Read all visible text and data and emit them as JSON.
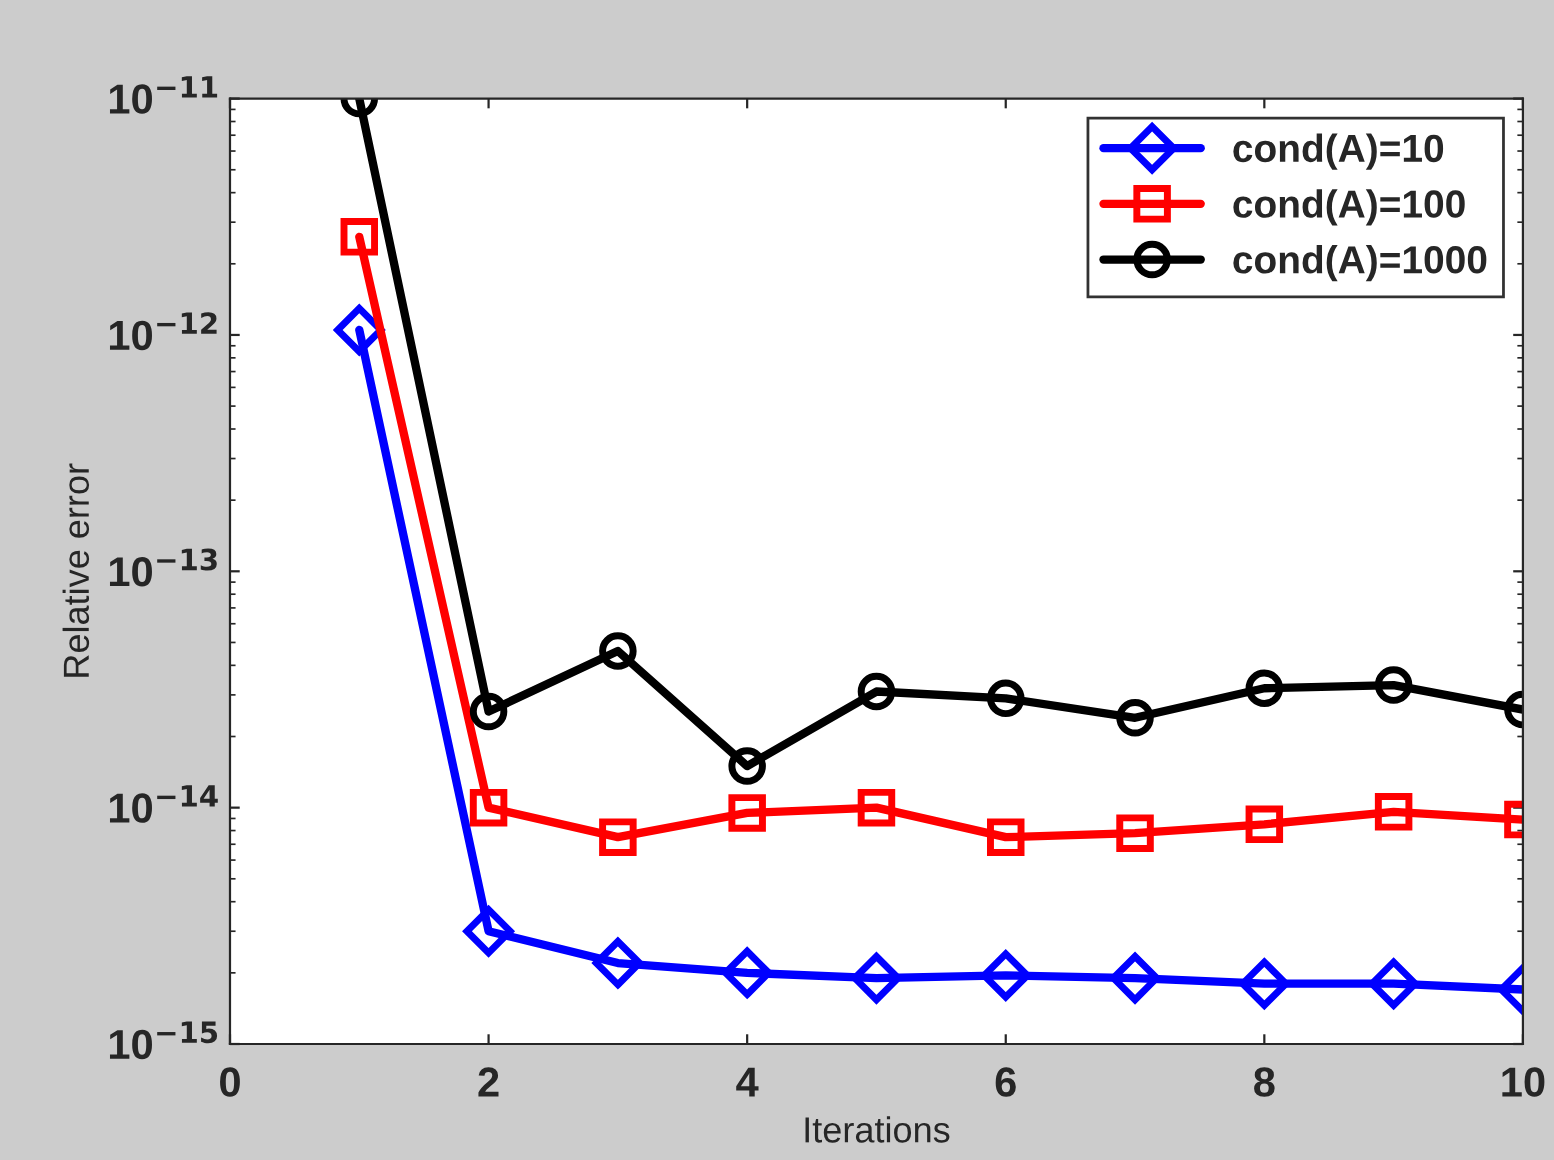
{
  "chart_data": {
    "type": "line",
    "xlabel": "Iterations",
    "ylabel": "Relative error",
    "log": "y",
    "x": [
      1,
      2,
      3,
      4,
      5,
      6,
      7,
      8,
      9,
      10
    ],
    "xlim": [
      0,
      10
    ],
    "xticks": [
      0,
      2,
      4,
      6,
      8,
      10
    ],
    "ylim": [
      1e-15,
      1e-11
    ],
    "yticks": [
      {
        "value": 1e-15,
        "label": "10$^{−15}$"
      },
      {
        "value": 1e-14,
        "label": "10$^{−14}$"
      },
      {
        "value": 1e-13,
        "label": "10$^{−13}$"
      },
      {
        "value": 1e-12,
        "label": "10$^{−12}$"
      },
      {
        "value": 1e-11,
        "label": "10$^{−11}$"
      }
    ],
    "legend": "top right",
    "grid": false,
    "series": [
      {
        "name": "cond(A)=10",
        "color": "#0000ff",
        "marker": "diamond",
        "values": [
          1.05e-12,
          3e-15,
          2.2e-15,
          2e-15,
          1.9e-15,
          1.95e-15,
          1.9e-15,
          1.8e-15,
          1.8e-15,
          1.7e-15
        ]
      },
      {
        "name": "cond(A)=100",
        "color": "#ff0000",
        "marker": "square",
        "values": [
          2.6e-12,
          1e-14,
          7.5e-15,
          9.5e-15,
          1e-14,
          7.5e-15,
          7.8e-15,
          8.5e-15,
          9.6e-15,
          8.9e-15
        ]
      },
      {
        "name": "cond(A)=1000",
        "color": "#000000",
        "marker": "circle",
        "values": [
          1e-11,
          2.55e-14,
          4.6e-14,
          1.5e-14,
          3.1e-14,
          2.9e-14,
          2.4e-14,
          3.2e-14,
          3.3e-14,
          2.6e-14
        ]
      }
    ]
  }
}
